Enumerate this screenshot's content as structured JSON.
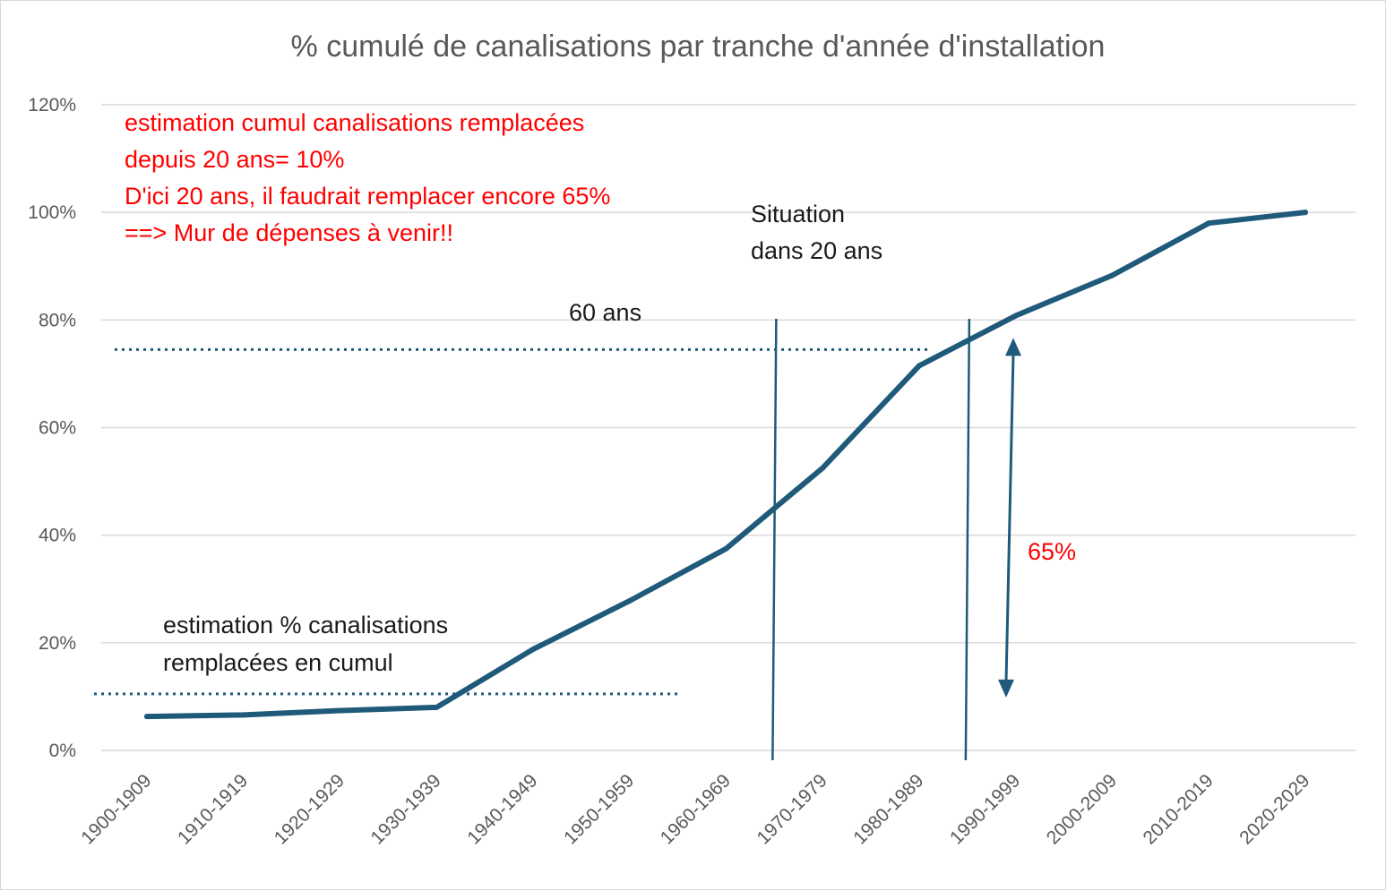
{
  "chart_data": {
    "type": "line",
    "title": "% cumulé de canalisations par tranche d'année d'installation",
    "categories": [
      "1900-1909",
      "1910-1919",
      "1920-1929",
      "1930-1939",
      "1940-1949",
      "1950-1959",
      "1960-1969",
      "1970-1979",
      "1980-1989",
      "1990-1999",
      "2000-2009",
      "2010-2019",
      "2020-2029"
    ],
    "series": [
      {
        "values": [
          6.3,
          6.6,
          7.4,
          8.0,
          18.8,
          27.8,
          37.5,
          52.5,
          71.5,
          80.8,
          88.3,
          98.0,
          100.0
        ]
      }
    ],
    "ylim": [
      0,
      120
    ],
    "yticks": [
      0,
      20,
      40,
      60,
      80,
      100,
      120
    ],
    "ytick_labels": [
      "0%",
      "20%",
      "40%",
      "60%",
      "80%",
      "100%",
      "120%"
    ],
    "grid": true,
    "colors": {
      "line": "#1f5a7a",
      "grid": "#d9d9d9",
      "red": "#ff0000"
    },
    "reference_lines": {
      "replaced_level": 10.5,
      "sixty_years_level": 74.5,
      "vertical_at": [
        "1960-1969 / 1970-1979",
        "1980-1989 / 1990-1999"
      ]
    },
    "annotations": {
      "red_note": [
        "estimation cumul canalisations remplacées",
        "depuis 20 ans= 10%",
        "D'ici 20 ans, il faudrait remplacer encore  65%",
        "==> Mur de dépenses à venir!!"
      ],
      "sixty_years": "60 ans",
      "situation": [
        "Situation",
        "dans 20 ans"
      ],
      "replaced": [
        "estimation % canalisations",
        "remplacées en cumul"
      ],
      "arrow_label": "65%",
      "arrow_range": [
        10.5,
        76
      ]
    }
  }
}
